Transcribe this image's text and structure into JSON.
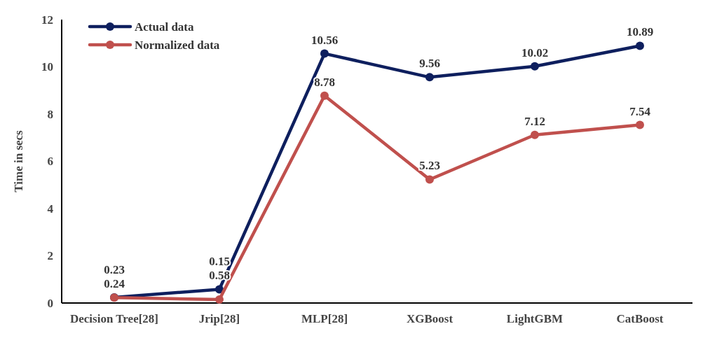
{
  "chart_data": {
    "type": "line",
    "ylabel": "Time in secs",
    "categories": [
      "Decision Tree[28]",
      "Jrip[28]",
      "MLP[28]",
      "XGBoost",
      "LightGBM",
      "CatBoost"
    ],
    "series": [
      {
        "name": "Actual data",
        "color": "#0e1f5e",
        "values": [
          0.24,
          0.58,
          10.56,
          9.56,
          10.02,
          10.89
        ]
      },
      {
        "name": "Normalized data",
        "color": "#c0504d",
        "values": [
          0.23,
          0.15,
          8.78,
          5.23,
          7.12,
          7.54
        ]
      }
    ],
    "ylim": [
      0,
      12
    ],
    "yticks": [
      0,
      2,
      4,
      6,
      8,
      10,
      12
    ],
    "grid": false,
    "legend": "top left",
    "marker": "circle",
    "line_style": "solid",
    "data_labels": true
  }
}
